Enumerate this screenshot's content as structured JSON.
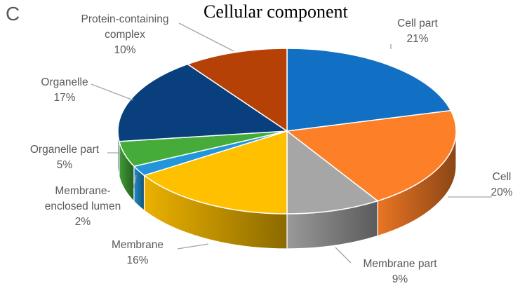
{
  "panel_letter": "C",
  "chart_data": {
    "type": "pie",
    "title": "Cellular component",
    "slices": [
      {
        "name": "Cell part",
        "value": 21,
        "label": "21%",
        "color": "#1270c4"
      },
      {
        "name": "Cell",
        "value": 20,
        "label": "20%",
        "color": "#fd7f27"
      },
      {
        "name": "Membrane part",
        "value": 9,
        "label": "9%",
        "color": "#a6a6a6"
      },
      {
        "name": "Membrane",
        "value": 16,
        "label": "16%",
        "color": "#ffc000"
      },
      {
        "name": "Membrane-enclosed lumen",
        "value": 2,
        "label": "2%",
        "color": "#2396d9"
      },
      {
        "name": "Organelle part",
        "value": 5,
        "label": "5%",
        "color": "#45ac3a"
      },
      {
        "name": "Organelle",
        "value": 17,
        "label": "17%",
        "color": "#083f7c"
      },
      {
        "name": "Protein-containing complex",
        "value": 10,
        "label": "10%",
        "color": "#b54107"
      }
    ],
    "label_lines": [
      [
        "Cell part",
        "21%"
      ],
      [
        "Cell",
        "20%"
      ],
      [
        "Membrane part",
        "9%"
      ],
      [
        "Membrane",
        "16%"
      ],
      [
        "Membrane-",
        "enclosed lumen",
        "2%"
      ],
      [
        "Organelle part",
        "5%"
      ],
      [
        "Organelle",
        "17%"
      ],
      [
        "Protein-containing",
        "complex",
        "10%"
      ]
    ]
  }
}
